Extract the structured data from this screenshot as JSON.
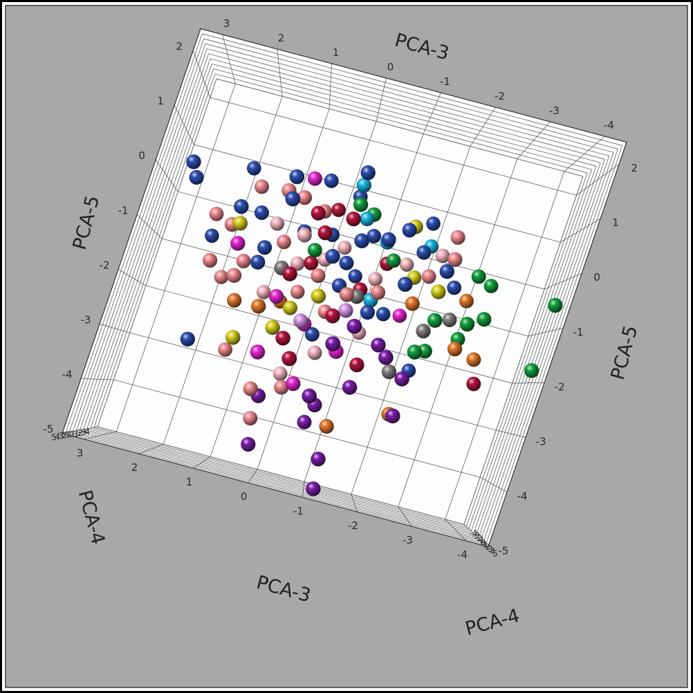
{
  "chart_data": {
    "type": "scatter3d",
    "xlabel": "PCA-3",
    "ylabel": "PCA-4",
    "zlabel": "PCA-5",
    "xlim": [
      3.4,
      -4.4
    ],
    "ylim": [
      -5,
      5
    ],
    "zlim": [
      2.4,
      -5
    ],
    "xticks": [
      3,
      2,
      1,
      0,
      -1,
      -2,
      -3,
      -4
    ],
    "yticks": [
      5,
      4,
      3,
      2,
      1,
      0,
      -1,
      -2,
      -3,
      -4
    ],
    "zticks": [
      2,
      1,
      0,
      -1,
      -2,
      -3,
      -4,
      -5
    ],
    "grid": true,
    "series": [
      {
        "color": "#f6b7c0",
        "x": [
          1.14,
          0.55,
          0.05,
          -1.01,
          0.51,
          -1.04,
          -0.36,
          0.14,
          -1.49,
          -2.07,
          -0.24,
          0.96
        ],
        "y": [
          -1,
          0,
          -2,
          -1.5,
          -0.5,
          -1,
          0,
          -0.5,
          -1,
          0,
          -2.5,
          -1
        ],
        "z": [
          -0.29,
          -0.41,
          -0.68,
          -0.81,
          -0.94,
          -1.89,
          -2.48,
          -3.02,
          -0.41,
          -0.12,
          -0.34,
          -1.61
        ]
      },
      {
        "color": "#f08a90",
        "x": [
          1.62,
          1.08,
          2.29,
          1.87,
          2.08,
          1.83,
          1.51,
          1.49,
          0.76,
          0.35,
          -2.22,
          -2.29,
          -1.95,
          1.29,
          0.55,
          0.4,
          0.02,
          0.34,
          0.05,
          -0.58,
          -0.29,
          0.88,
          -1.12
        ],
        "y": [
          0,
          1,
          -0.5,
          1.5,
          0.5,
          -1,
          2,
          0,
          1,
          -1.5,
          0.5,
          1,
          0,
          -0.5,
          1.5,
          0,
          1,
          -1,
          0.5,
          2,
          -0.5,
          0,
          1
        ],
        "z": [
          0.26,
          0.27,
          -0.43,
          -0.62,
          -1.33,
          -1.54,
          -1.52,
          -1.17,
          0.22,
          0.19,
          0.26,
          -0.17,
          -0.56,
          -2.85,
          -3.43,
          -3.97,
          -3.26,
          -1.44,
          -1.09,
          -1.33,
          -1.68,
          -0.63,
          -1.12
        ]
      },
      {
        "color": "#b5163e",
        "x": [
          0.43,
          0.1,
          -0.24,
          0.26,
          0.55,
          -0.46,
          -0.79,
          0.29,
          0.04,
          -1.18,
          -3.42,
          -1.12,
          0.18
        ],
        "y": [
          0.5,
          -1,
          1,
          0,
          1.5,
          2,
          0.5,
          1,
          2.5,
          1.5,
          0,
          -0.5,
          1
        ],
        "z": [
          0.03,
          0.26,
          0.07,
          -0.88,
          -1.22,
          -1.77,
          -1.14,
          -2.38,
          -2.72,
          -2.51,
          -2.28,
          -0.51,
          -0.31
        ]
      },
      {
        "color": "#e526d2",
        "x": [
          0.71,
          1.67,
          0.64,
          -0.17,
          -0.73,
          0.0,
          0.67,
          -1.68
        ],
        "y": [
          0,
          1,
          2,
          1.5,
          2.5,
          1,
          0.5,
          -1
        ],
        "z": [
          0.66,
          -0.91,
          -2.75,
          -3.14,
          -2.38,
          -2.03,
          -1.66,
          -1.38
        ]
      },
      {
        "color": "#7a1ea8",
        "x": [
          0.38,
          -0.53,
          -0.68,
          -1.19,
          -2.11,
          -0.6,
          -1.07,
          0.27,
          -1.16,
          -2.05,
          -0.9,
          -1.44,
          -1.64,
          -0.63
        ],
        "y": [
          1,
          2,
          0.5,
          1.5,
          2,
          0,
          1,
          0.5,
          1.5,
          2,
          2.5,
          1.5,
          2,
          3
        ],
        "z": [
          -3.52,
          -3.28,
          -3.42,
          -2.94,
          -3.24,
          -3.78,
          -4.36,
          -4.44,
          -4.9,
          -2.55,
          -1.86,
          -2.06,
          -2.25,
          -2.27
        ]
      },
      {
        "color": "#d6cf1e",
        "x": [
          1.73,
          -1.4,
          -0.09,
          1.16,
          0.54,
          0.36,
          -2.18,
          -1.7
        ],
        "y": [
          1.5,
          0.5,
          2,
          2,
          1,
          0,
          1.5,
          -0.5
        ],
        "z": [
          -0.56,
          0.25,
          -1.49,
          -2.61,
          -2.24,
          -1.79,
          -0.84,
          -0.63
        ]
      },
      {
        "color": "#e0782a",
        "x": [
          1.4,
          0.92,
          0.59,
          -2.78,
          -2.04,
          -2.83,
          -3.27,
          -1.81,
          -1.02
        ],
        "y": [
          0.5,
          1,
          -0.5,
          0,
          1.5,
          1,
          0,
          0.5,
          1
        ],
        "z": [
          -1.93,
          -1.93,
          -1.71,
          -0.82,
          -3.23,
          -1.76,
          -1.84,
          -1.14,
          -3.74
        ]
      },
      {
        "color": "#14a040",
        "x": [
          -2.85,
          -3.15,
          -4.35,
          -4.3,
          -3.19,
          -2.9,
          -2.86,
          -2.29,
          -2.11,
          -2.31,
          -0.58,
          -0.28,
          0.27,
          -1.22
        ],
        "y": [
          0,
          -0.5,
          1,
          1.5,
          0.5,
          1,
          0,
          1.5,
          2,
          1,
          0.5,
          1,
          0,
          -0.5
        ],
        "z": [
          -0.32,
          -0.41,
          -0.51,
          -1.79,
          -1.08,
          -1.26,
          -1.55,
          -1.36,
          -2.02,
          -1.94,
          0.27,
          0.36,
          -0.63,
          -0.42
        ]
      },
      {
        "color": "#1cb6e6",
        "x": [
          -0.22,
          -0.48,
          -0.99,
          -1.04,
          -1.82
        ],
        "y": [
          1,
          0.5,
          0,
          0.5,
          -0.5
        ],
        "z": [
          0.72,
          0.16,
          -0.14,
          -1.28,
          0.02
        ]
      },
      {
        "color": "#808080",
        "x": [
          0.74,
          -0.77,
          -1.79,
          -2.16,
          -2.59
        ],
        "y": [
          1,
          0.5,
          1.5,
          1,
          0
        ],
        "z": [
          -1.14,
          -1.28,
          -2.48,
          -1.59,
          -1.24
        ]
      },
      {
        "color": "#d898ec",
        "x": [
          0.08,
          -0.66
        ],
        "y": [
          1,
          0.5
        ],
        "z": [
          -1.99,
          -1.58
        ]
      },
      {
        "color": "#2e4fb0",
        "x": [
          2.95,
          2.83,
          1.91,
          1.0,
          0.4,
          -0.22,
          -0.22,
          1.83,
          1.46,
          0.93,
          2.26,
          1.18,
          1.2,
          0.6,
          0.05,
          -0.52,
          -0.71,
          -0.99,
          -1.31,
          -1.72,
          -0.1,
          -0.38,
          -0.62,
          -0.39,
          -1.06,
          -1.37,
          -1.54,
          -1.71,
          -2.22,
          -2.49,
          1.96,
          -0.2,
          -2.19
        ],
        "y": [
          1,
          0.5,
          -1,
          2,
          0,
          1.5,
          -0.5,
          1,
          0,
          2.5,
          -1,
          0.5,
          1,
          -1.5,
          0,
          2,
          -0.5,
          1,
          0.5,
          -1,
          1.5,
          0,
          -2,
          1,
          0.5,
          -1,
          2,
          0,
          1,
          -0.5,
          1.5,
          0,
          -1
        ],
        "z": [
          0.33,
          0.09,
          0.61,
          0.5,
          0.7,
          0.93,
          0.58,
          -0.24,
          -0.21,
          0.07,
          -0.83,
          -0.84,
          -1.15,
          -0.28,
          -0.27,
          -0.32,
          -0.07,
          -0.13,
          0.16,
          0.47,
          -0.71,
          -0.71,
          -0.84,
          -1.18,
          -1.51,
          -1.43,
          -0.88,
          -0.15,
          -0.42,
          -0.62,
          -2.85,
          -2.16,
          -2.34
        ]
      }
    ]
  }
}
